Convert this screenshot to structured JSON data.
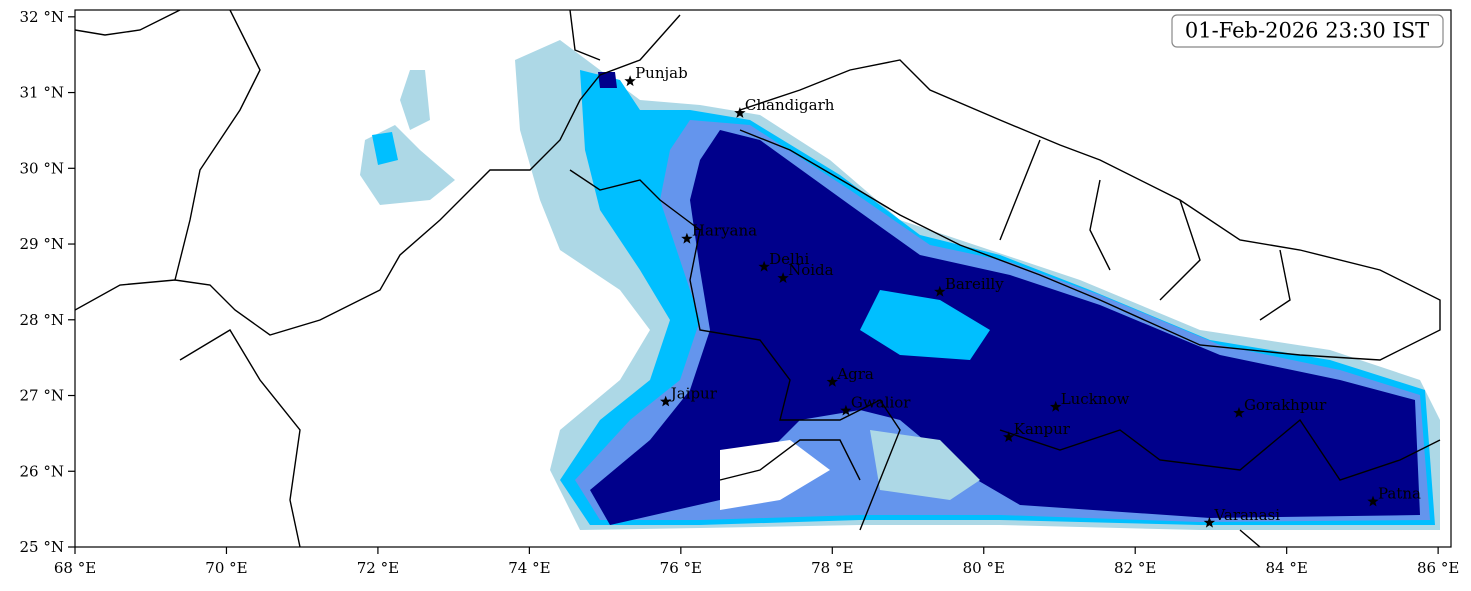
{
  "chart_data": {
    "type": "map",
    "annotation": "01-Feb-2026 23:30 IST",
    "xlim": [
      68,
      86.17
    ],
    "ylim": [
      25,
      32.09
    ],
    "xticks": [
      {
        "value": 68,
        "label": "68 °E"
      },
      {
        "value": 70,
        "label": "70 °E"
      },
      {
        "value": 72,
        "label": "72 °E"
      },
      {
        "value": 74,
        "label": "74 °E"
      },
      {
        "value": 76,
        "label": "76 °E"
      },
      {
        "value": 78,
        "label": "78 °E"
      },
      {
        "value": 80,
        "label": "80 °E"
      },
      {
        "value": 82,
        "label": "82 °E"
      },
      {
        "value": 84,
        "label": "84 °E"
      },
      {
        "value": 86,
        "label": "86 °E"
      }
    ],
    "yticks": [
      {
        "value": 25,
        "label": "25 °N"
      },
      {
        "value": 26,
        "label": "26 °N"
      },
      {
        "value": 27,
        "label": "27 °N"
      },
      {
        "value": 28,
        "label": "28 °N"
      },
      {
        "value": 29,
        "label": "29 °N"
      },
      {
        "value": 30,
        "label": "30 °N"
      },
      {
        "value": 31,
        "label": "31 °N"
      },
      {
        "value": 32,
        "label": "32 °N"
      }
    ],
    "places": {
      "names": [
        "Punjab",
        "Chandigarh",
        "Haryana",
        "Delhi",
        "Noida",
        "Bareilly",
        "Agra",
        "Jaipur",
        "Gwalior",
        "Lucknow",
        "Kanpur",
        "Gorakhpur",
        "Varanasi",
        "Patna"
      ],
      "lon": [
        75.33,
        76.78,
        76.08,
        77.1,
        77.35,
        79.42,
        78.0,
        75.8,
        78.18,
        80.95,
        80.33,
        83.37,
        82.98,
        85.14
      ],
      "lat": [
        31.15,
        30.73,
        29.07,
        28.7,
        28.55,
        28.37,
        27.18,
        26.92,
        26.8,
        26.85,
        26.45,
        26.77,
        25.32,
        25.6
      ]
    }
  }
}
